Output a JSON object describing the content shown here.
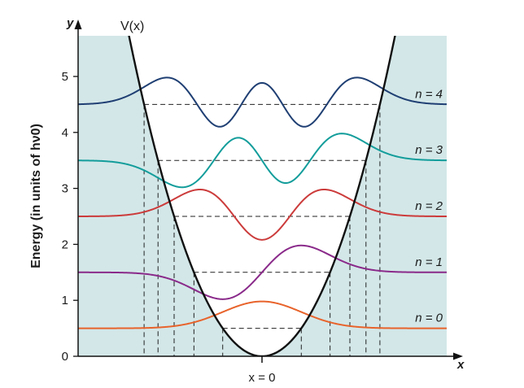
{
  "figure": {
    "y_axis_letter": "y",
    "x_axis_letter": "x",
    "ylabel": "Energy (in units of hν0)",
    "potential_label": "V(x)",
    "origin_label": "x = 0",
    "colors": {
      "shade": "#d3e7e8",
      "potential": "#111111",
      "dashed": "#222222",
      "axis": "#111111"
    }
  },
  "chart_data": {
    "type": "line",
    "ylim": [
      0,
      5.7
    ],
    "y_ticks": [
      "0",
      "1",
      "2",
      "3",
      "4",
      "5"
    ],
    "levels": [
      {
        "n": 0,
        "energy": 0.5,
        "label": "n = 0",
        "color": "#e8632b",
        "amplitude": 0.48
      },
      {
        "n": 1,
        "energy": 1.5,
        "label": "n = 1",
        "color": "#8a2a8a",
        "amplitude": 0.48
      },
      {
        "n": 2,
        "energy": 2.5,
        "label": "n = 2",
        "color": "#cc3b3b",
        "amplitude": 0.48
      },
      {
        "n": 3,
        "energy": 3.5,
        "label": "n = 3",
        "color": "#139d9b",
        "amplitude": 0.48
      },
      {
        "n": 4,
        "energy": 4.5,
        "label": "n = 4",
        "color": "#1f3f73",
        "amplitude": 0.48
      }
    ]
  }
}
